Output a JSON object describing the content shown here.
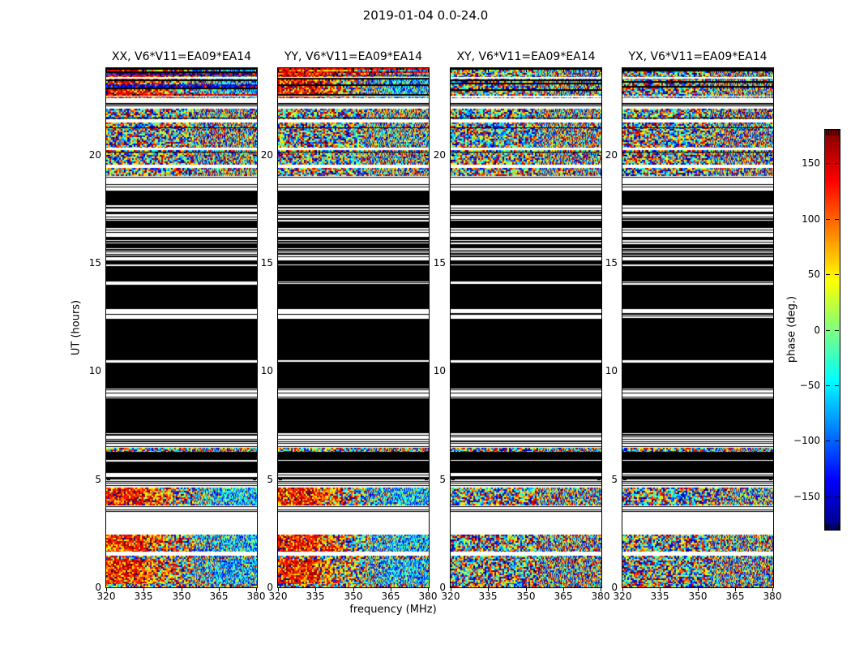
{
  "chart_data": {
    "type": "heatmap",
    "title": "2019-01-04 0.0-24.0",
    "panels": [
      {
        "title": "XX, V6*V11=EA09*EA14",
        "pol": "XX",
        "warm_phase_structure": true
      },
      {
        "title": "YY, V6*V11=EA09*EA14",
        "pol": "YY",
        "warm_phase_structure": true
      },
      {
        "title": "XY, V6*V11=EA09*EA14",
        "pol": "XY",
        "warm_phase_structure": false
      },
      {
        "title": "YX, V6*V11=EA09*EA14",
        "pol": "YX",
        "warm_phase_structure": false
      }
    ],
    "x": {
      "label": "frequency (MHz)",
      "ticks": [
        320,
        335,
        350,
        365,
        380
      ],
      "range": [
        320,
        380
      ]
    },
    "y": {
      "label": "UT (hours)",
      "ticks": [
        0,
        5,
        10,
        15,
        20
      ],
      "range": [
        0,
        24
      ]
    },
    "colorbar": {
      "label": "phase (deg.)",
      "ticks": [
        150,
        100,
        50,
        0,
        -50,
        -100,
        -150
      ],
      "range": [
        -180,
        180
      ],
      "colormap": "jet"
    },
    "bands": [
      {
        "ut": [
          24.0,
          22.6
        ],
        "type": "toprows",
        "wlines": 2
      },
      {
        "ut": [
          22.6,
          22.12
        ],
        "type": "white",
        "blines": 3
      },
      {
        "ut": [
          22.12,
          21.62
        ],
        "type": "speckle",
        "blines": 1
      },
      {
        "ut": [
          21.62,
          21.5
        ],
        "type": "white"
      },
      {
        "ut": [
          21.5,
          20.32
        ],
        "type": "speckle",
        "blines": 2
      },
      {
        "ut": [
          20.32,
          20.2
        ],
        "type": "white"
      },
      {
        "ut": [
          20.2,
          19.52
        ],
        "type": "speckle",
        "blines": 1
      },
      {
        "ut": [
          19.52,
          19.4
        ],
        "type": "white"
      },
      {
        "ut": [
          19.4,
          19.0
        ],
        "type": "speckle"
      },
      {
        "ut": [
          19.0,
          18.32
        ],
        "type": "white",
        "blines": 3
      },
      {
        "ut": [
          18.32,
          16.5
        ],
        "type": "black",
        "wlines": 8
      },
      {
        "ut": [
          16.5,
          16.2
        ],
        "type": "white",
        "blines": 2
      },
      {
        "ut": [
          16.2,
          15.28
        ],
        "type": "black",
        "wlines": 4
      },
      {
        "ut": [
          15.28,
          15.12
        ],
        "type": "white"
      },
      {
        "ut": [
          15.12,
          11.82
        ],
        "type": "black",
        "wlines": 9
      },
      {
        "ut": [
          11.82,
          10.52
        ],
        "type": "black"
      },
      {
        "ut": [
          10.52,
          10.3
        ],
        "type": "black",
        "wlines": 2
      },
      {
        "ut": [
          10.3,
          9.2
        ],
        "type": "black"
      },
      {
        "ut": [
          9.2,
          8.72
        ],
        "type": "white",
        "blines": 3
      },
      {
        "ut": [
          8.72,
          7.62
        ],
        "type": "black"
      },
      {
        "ut": [
          7.62,
          6.72
        ],
        "type": "black",
        "wlines": 4
      },
      {
        "ut": [
          6.72,
          6.45
        ],
        "type": "white",
        "blines": 2
      },
      {
        "ut": [
          6.45,
          6.28
        ],
        "type": "speckle"
      },
      {
        "ut": [
          6.28,
          4.97
        ],
        "type": "black",
        "wlines": 4
      },
      {
        "ut": [
          4.97,
          4.6
        ],
        "type": "white",
        "blines": 3
      },
      {
        "ut": [
          4.6,
          3.8
        ],
        "type": "warm"
      },
      {
        "ut": [
          3.8,
          3.45
        ],
        "type": "white",
        "blines": 3
      },
      {
        "ut": [
          3.45,
          2.42
        ],
        "type": "white"
      },
      {
        "ut": [
          2.42,
          1.66
        ],
        "type": "warm"
      },
      {
        "ut": [
          1.66,
          1.47
        ],
        "type": "white"
      },
      {
        "ut": [
          1.47,
          1.32
        ],
        "type": "speckle"
      },
      {
        "ut": [
          1.32,
          0.15
        ],
        "type": "warm"
      },
      {
        "ut": [
          0.15,
          0.0
        ],
        "type": "speckle"
      }
    ]
  }
}
